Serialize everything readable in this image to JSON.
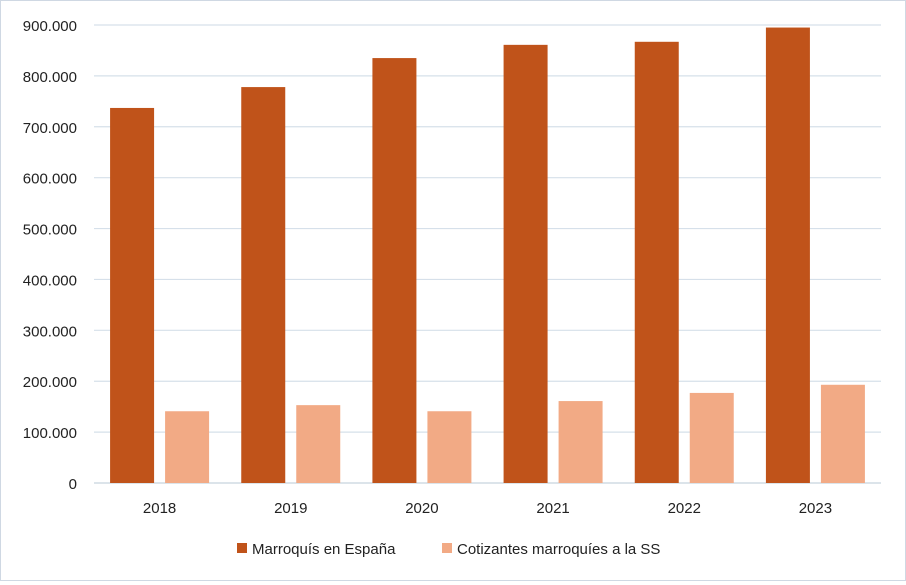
{
  "chart_data": {
    "type": "bar",
    "categories": [
      "2018",
      "2019",
      "2020",
      "2021",
      "2022",
      "2023"
    ],
    "series": [
      {
        "name": "Marroquís en España",
        "color": "#c0531a",
        "values": [
          737000,
          778000,
          835000,
          861000,
          867000,
          895000
        ]
      },
      {
        "name": "Cotizantes marroquíes a la SS",
        "color": "#f2aa85",
        "values": [
          141000,
          153000,
          141000,
          161000,
          177000,
          193000
        ]
      }
    ],
    "y_ticks": [
      "0",
      "100.000",
      "200.000",
      "300.000",
      "400.000",
      "500.000",
      "600.000",
      "700.000",
      "800.000",
      "900.000"
    ],
    "ylim": [
      0,
      900000
    ],
    "grid": true,
    "legend_position": "bottom",
    "gridline_color": "#d6e0ea",
    "axis_color": "#c8d3de"
  }
}
